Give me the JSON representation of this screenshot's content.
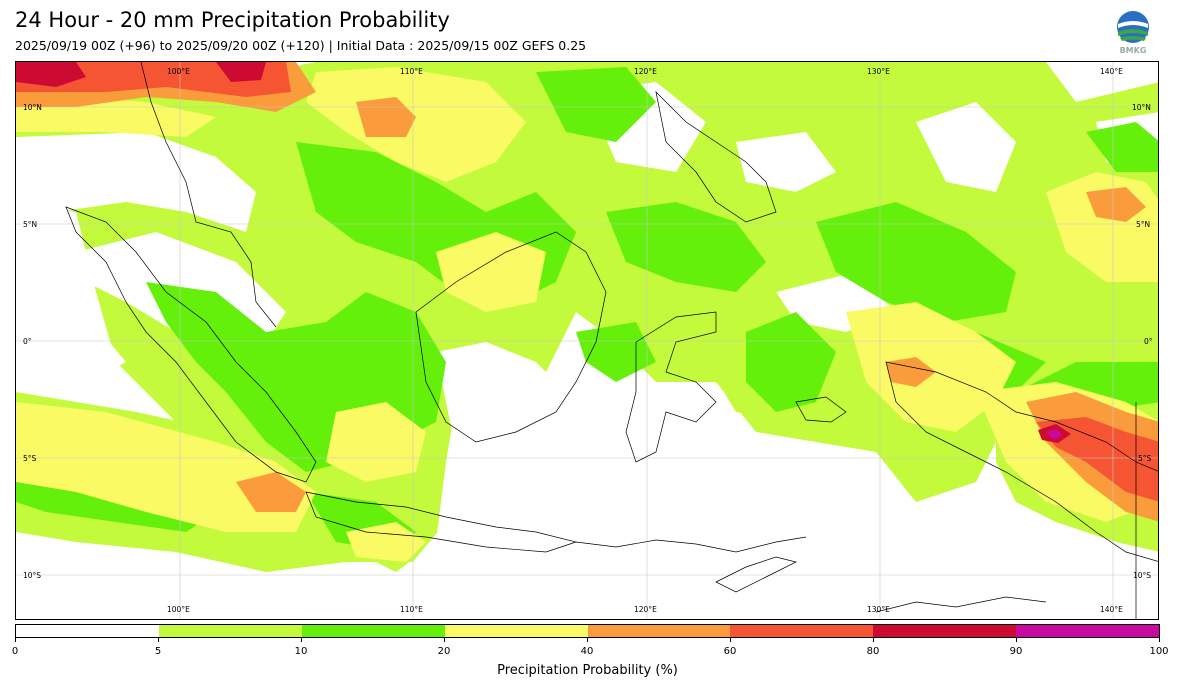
{
  "header": {
    "title": "24 Hour - 20 mm Precipitation Probability",
    "subtitle": "2025/09/19 00Z (+96) to 2025/09/20 00Z (+120) | Initial Data : 2025/09/15 00Z GEFS 0.25"
  },
  "logo": {
    "icon": "bmkg-logo",
    "text": "BMKG"
  },
  "map": {
    "lon_labels": [
      "100°E",
      "110°E",
      "120°E",
      "130°E",
      "140°E"
    ],
    "lat_labels": [
      "10°N",
      "5°N",
      "0°",
      "5°S",
      "10°S"
    ],
    "shading": {
      "pale_green": "#c3fa3c",
      "green": "#64f00a",
      "yellow": "#fafa64",
      "orange": "#fa9b3c",
      "red": "#f55532",
      "crimson": "#cd0a32",
      "magenta": "#c80aa0"
    }
  },
  "colorbar": {
    "ticks": [
      "0",
      "5",
      "10",
      "20",
      "40",
      "60",
      "80",
      "90",
      "100"
    ],
    "colors": [
      "#ffffff",
      "#c3fa3c",
      "#64f00a",
      "#fafa64",
      "#fa9b3c",
      "#f55532",
      "#cd0a32",
      "#c80aa0"
    ],
    "label": "Precipitation Probability (%)"
  }
}
